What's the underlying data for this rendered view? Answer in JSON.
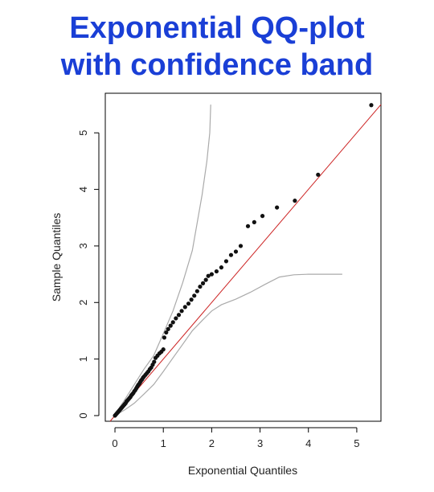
{
  "title_lines": [
    "Exponential QQ-plot",
    "with confidence band"
  ],
  "chart_data": {
    "type": "scatter",
    "xlabel": "Exponential Quantiles",
    "ylabel": "Sample Quantiles",
    "xlim": [
      -0.2,
      5.5
    ],
    "ylim": [
      -0.1,
      5.7
    ],
    "x_ticks": [
      0,
      1,
      2,
      3,
      4,
      5
    ],
    "y_ticks": [
      0,
      1,
      2,
      3,
      4,
      5
    ],
    "grid": false,
    "colors": {
      "points": "#111111",
      "reference_line": "#cc2222",
      "band": "#aaaaaa",
      "title": "#1a3fd6"
    },
    "reference_line": {
      "intercept": 0,
      "slope": 1
    },
    "points": [
      [
        0.0,
        0.0
      ],
      [
        0.02,
        0.02
      ],
      [
        0.04,
        0.04
      ],
      [
        0.06,
        0.06
      ],
      [
        0.08,
        0.08
      ],
      [
        0.1,
        0.1
      ],
      [
        0.12,
        0.12
      ],
      [
        0.14,
        0.14
      ],
      [
        0.16,
        0.16
      ],
      [
        0.18,
        0.18
      ],
      [
        0.2,
        0.2
      ],
      [
        0.22,
        0.22
      ],
      [
        0.24,
        0.25
      ],
      [
        0.26,
        0.27
      ],
      [
        0.28,
        0.29
      ],
      [
        0.3,
        0.31
      ],
      [
        0.32,
        0.33
      ],
      [
        0.34,
        0.36
      ],
      [
        0.36,
        0.38
      ],
      [
        0.38,
        0.4
      ],
      [
        0.4,
        0.43
      ],
      [
        0.42,
        0.45
      ],
      [
        0.44,
        0.48
      ],
      [
        0.46,
        0.51
      ],
      [
        0.48,
        0.54
      ],
      [
        0.5,
        0.56
      ],
      [
        0.52,
        0.59
      ],
      [
        0.54,
        0.62
      ],
      [
        0.56,
        0.64
      ],
      [
        0.58,
        0.67
      ],
      [
        0.6,
        0.69
      ],
      [
        0.63,
        0.72
      ],
      [
        0.66,
        0.75
      ],
      [
        0.69,
        0.78
      ],
      [
        0.72,
        0.82
      ],
      [
        0.75,
        0.85
      ],
      [
        0.78,
        0.9
      ],
      [
        0.81,
        0.95
      ],
      [
        0.84,
        1.02
      ],
      [
        0.88,
        1.06
      ],
      [
        0.92,
        1.1
      ],
      [
        0.96,
        1.13
      ],
      [
        1.0,
        1.17
      ],
      [
        1.02,
        1.38
      ],
      [
        1.06,
        1.47
      ],
      [
        1.1,
        1.53
      ],
      [
        1.15,
        1.59
      ],
      [
        1.2,
        1.65
      ],
      [
        1.26,
        1.72
      ],
      [
        1.32,
        1.78
      ],
      [
        1.38,
        1.85
      ],
      [
        1.45,
        1.92
      ],
      [
        1.52,
        1.98
      ],
      [
        1.58,
        2.05
      ],
      [
        1.64,
        2.12
      ],
      [
        1.7,
        2.2
      ],
      [
        1.76,
        2.28
      ],
      [
        1.82,
        2.34
      ],
      [
        1.88,
        2.4
      ],
      [
        1.93,
        2.47
      ],
      [
        2.0,
        2.5
      ],
      [
        2.1,
        2.55
      ],
      [
        2.2,
        2.62
      ],
      [
        2.3,
        2.73
      ],
      [
        2.4,
        2.84
      ],
      [
        2.5,
        2.9
      ],
      [
        2.6,
        3.0
      ],
      [
        2.75,
        3.35
      ],
      [
        2.88,
        3.42
      ],
      [
        3.05,
        3.53
      ],
      [
        3.35,
        3.68
      ],
      [
        3.72,
        3.8
      ],
      [
        4.2,
        4.26
      ],
      [
        5.3,
        5.49
      ]
    ],
    "band_upper": [
      [
        0.0,
        0.02
      ],
      [
        0.2,
        0.28
      ],
      [
        0.4,
        0.55
      ],
      [
        0.6,
        0.82
      ],
      [
        0.8,
        1.06
      ],
      [
        1.0,
        1.45
      ],
      [
        1.2,
        1.85
      ],
      [
        1.4,
        2.35
      ],
      [
        1.6,
        2.92
      ],
      [
        1.8,
        3.9
      ],
      [
        1.9,
        4.5
      ],
      [
        1.96,
        5.0
      ],
      [
        1.98,
        5.5
      ]
    ],
    "band_lower": [
      [
        0.0,
        0.0
      ],
      [
        0.2,
        0.1
      ],
      [
        0.4,
        0.22
      ],
      [
        0.6,
        0.38
      ],
      [
        0.8,
        0.55
      ],
      [
        1.0,
        0.78
      ],
      [
        1.2,
        1.02
      ],
      [
        1.4,
        1.26
      ],
      [
        1.6,
        1.5
      ],
      [
        1.8,
        1.68
      ],
      [
        2.0,
        1.85
      ],
      [
        2.2,
        1.96
      ],
      [
        2.5,
        2.06
      ],
      [
        2.8,
        2.18
      ],
      [
        3.1,
        2.32
      ],
      [
        3.4,
        2.45
      ],
      [
        3.7,
        2.49
      ],
      [
        4.0,
        2.5
      ],
      [
        4.3,
        2.5
      ],
      [
        4.7,
        2.5
      ]
    ]
  }
}
